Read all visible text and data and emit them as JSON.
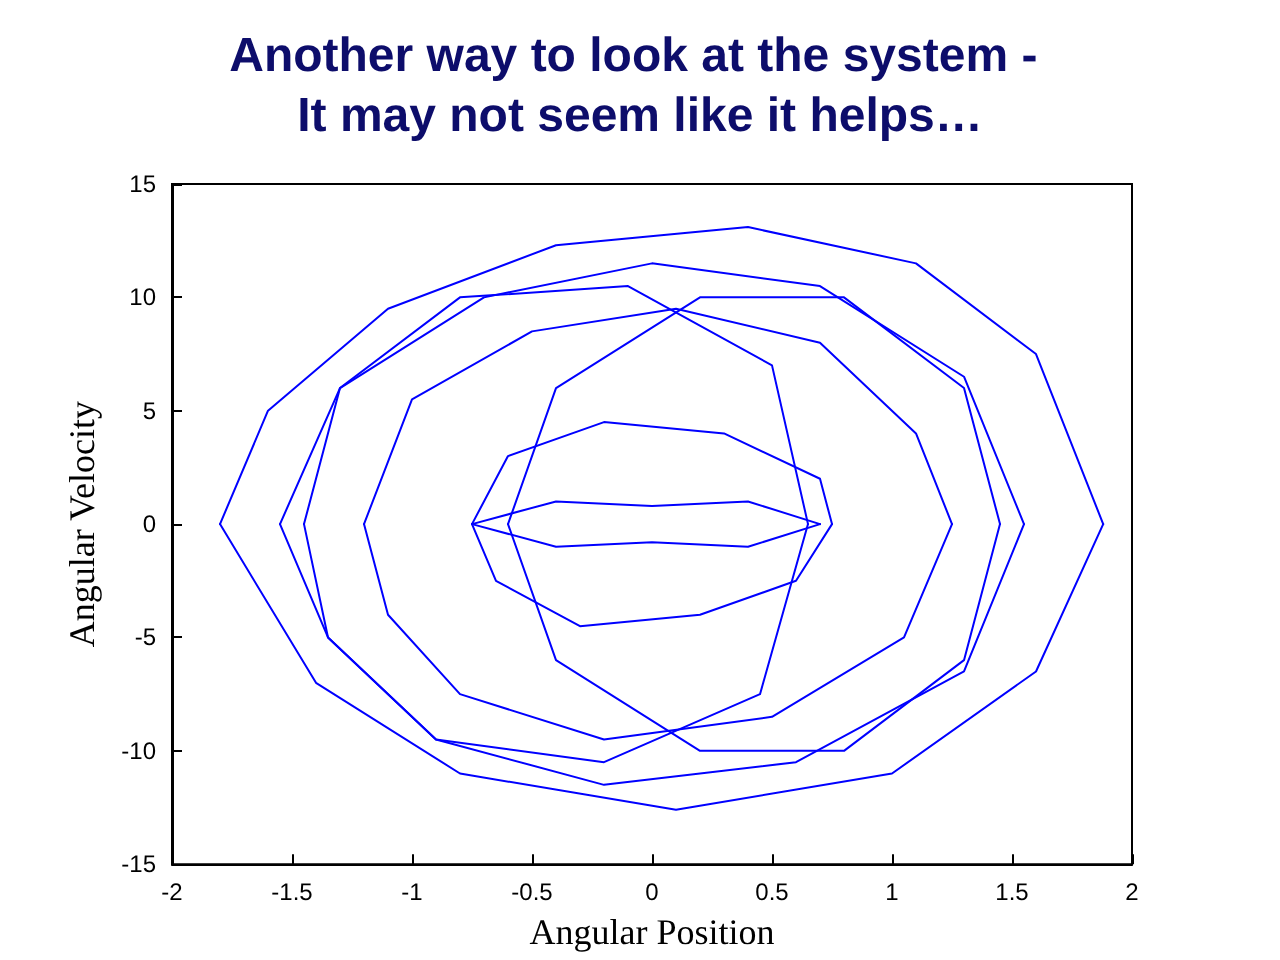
{
  "chart_data": {
    "type": "line",
    "title": "Another way to look at the system - It may not seem like it helps…",
    "xlabel": "Angular Position",
    "ylabel": "Angular Velocity",
    "xlim": [
      -2,
      2
    ],
    "xticks": [
      -2,
      -1.5,
      -1,
      -0.5,
      0,
      0.5,
      1,
      1.5,
      2
    ],
    "ylim": [
      -15,
      15
    ],
    "yticks": [
      -15,
      -10,
      -5,
      0,
      5,
      10,
      15
    ],
    "grid": false,
    "marker": "none",
    "line_style": "solid",
    "series": [
      {
        "color": "#0000ff",
        "x": [
          -1.8,
          -1.6,
          -1.1,
          -0.4,
          0.4,
          1.1,
          1.6,
          1.88
        ],
        "values": [
          0,
          5,
          9.5,
          12.3,
          13.1,
          11.5,
          7.5,
          0
        ]
      },
      {
        "color": "#0000ff",
        "x": [
          -1.8,
          -1.4,
          -0.8,
          0.1,
          1.0,
          1.6,
          1.88
        ],
        "values": [
          0,
          -7,
          -11,
          -12.6,
          -11,
          -6.5,
          0
        ]
      },
      {
        "color": "#0000ff",
        "x": [
          -1.55,
          -1.3,
          -0.7,
          0,
          0.7,
          1.3,
          1.55
        ],
        "values": [
          0,
          6,
          10,
          11.5,
          10.5,
          6.5,
          0
        ]
      },
      {
        "color": "#0000ff",
        "x": [
          -1.55,
          -1.35,
          -0.9,
          -0.2,
          0.6,
          1.3,
          1.55
        ],
        "values": [
          0,
          -5,
          -9.5,
          -11.5,
          -10.5,
          -6.5,
          0
        ]
      },
      {
        "color": "#0000ff",
        "x": [
          -1.2,
          -1,
          -0.5,
          0.1,
          0.7,
          1.1,
          1.25
        ],
        "values": [
          0,
          5.5,
          8.5,
          9.5,
          8,
          4,
          0
        ]
      },
      {
        "color": "#0000ff",
        "x": [
          -1.2,
          -1.1,
          -0.8,
          -0.2,
          0.5,
          1.05,
          1.25
        ],
        "values": [
          0,
          -4,
          -7.5,
          -9.5,
          -8.5,
          -5,
          0
        ]
      },
      {
        "color": "#0000ff",
        "x": [
          -0.6,
          -0.4,
          0.2,
          0.8,
          1.3,
          1.45
        ],
        "values": [
          0,
          6,
          10,
          10,
          6,
          0
        ]
      },
      {
        "color": "#0000ff",
        "x": [
          -0.6,
          -0.4,
          0.2,
          0.8,
          1.3,
          1.45
        ],
        "values": [
          0,
          -6,
          -10,
          -10,
          -6,
          0
        ]
      },
      {
        "color": "#0000ff",
        "x": [
          -1.45,
          -1.3,
          -0.8,
          -0.1,
          0.5,
          0.65
        ],
        "values": [
          0,
          6,
          10,
          10.5,
          7,
          0
        ]
      },
      {
        "color": "#0000ff",
        "x": [
          -1.45,
          -1.35,
          -0.9,
          -0.2,
          0.45,
          0.65
        ],
        "values": [
          0,
          -5,
          -9.5,
          -10.5,
          -7.5,
          0
        ]
      },
      {
        "color": "#0000ff",
        "x": [
          -0.75,
          -0.6,
          -0.2,
          0.3,
          0.7,
          0.75
        ],
        "values": [
          0,
          3,
          4.5,
          4,
          2,
          0
        ]
      },
      {
        "color": "#0000ff",
        "x": [
          -0.75,
          -0.65,
          -0.3,
          0.2,
          0.6,
          0.75
        ],
        "values": [
          0,
          -2.5,
          -4.5,
          -4,
          -2.5,
          0
        ]
      },
      {
        "color": "#0000ff",
        "x": [
          -0.75,
          -0.4,
          0,
          0.4,
          0.7
        ],
        "values": [
          0,
          1,
          0.8,
          1,
          0
        ]
      },
      {
        "color": "#0000ff",
        "x": [
          -0.75,
          -0.4,
          0,
          0.4,
          0.7
        ],
        "values": [
          0,
          -1,
          -0.8,
          -1,
          0
        ]
      }
    ]
  }
}
